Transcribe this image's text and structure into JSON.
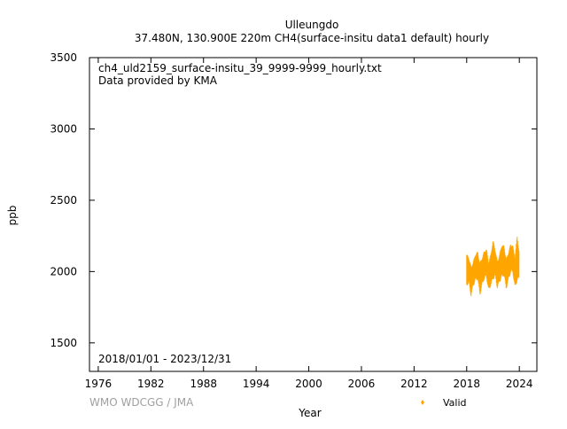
{
  "chart_data": {
    "type": "scatter",
    "title": "Ulleungdo",
    "subtitle": "37.480N, 130.900E 220m    CH4(surface-insitu data1 default) hourly",
    "xlabel": "Year",
    "ylabel": "ppb",
    "xlim": [
      1975,
      2026
    ],
    "ylim": [
      1300,
      3500
    ],
    "xticks": [
      1976,
      1982,
      1988,
      1994,
      2000,
      2006,
      2012,
      2018,
      2024
    ],
    "yticks": [
      1500,
      2000,
      2500,
      3000,
      3500
    ],
    "annotations": {
      "filename": "ch4_uld2159_surface-insitu_39_9999-9999_hourly.txt",
      "provider": "Data provided by KMA",
      "period": "2018/01/01 - 2023/12/31",
      "credit": "WMO WDCGG / JMA"
    },
    "legend": {
      "placement": "bottom-right",
      "entries": [
        "Valid"
      ]
    },
    "series": [
      {
        "name": "Valid",
        "color": "#ffa500",
        "x": [
          2018.0,
          2018.25,
          2018.5,
          2018.75,
          2019.0,
          2019.25,
          2019.5,
          2019.75,
          2020.0,
          2020.25,
          2020.5,
          2020.75,
          2021.0,
          2021.25,
          2021.5,
          2021.75,
          2022.0,
          2022.25,
          2022.5,
          2022.75,
          2023.0,
          2023.25,
          2023.5,
          2023.75,
          2023.99
        ],
        "low": [
          1920,
          1930,
          1830,
          1900,
          1940,
          1960,
          1850,
          1910,
          1950,
          1960,
          1870,
          1920,
          1960,
          1970,
          1880,
          1930,
          1970,
          1990,
          1890,
          1940,
          1990,
          2000,
          1900,
          1950,
          1960
        ],
        "high": [
          2110,
          2090,
          2030,
          2070,
          2120,
          2130,
          2050,
          2090,
          2140,
          2160,
          2060,
          2110,
          2210,
          2150,
          2070,
          2120,
          2180,
          2170,
          2080,
          2130,
          2190,
          2180,
          2090,
          2240,
          2130
        ]
      }
    ]
  }
}
